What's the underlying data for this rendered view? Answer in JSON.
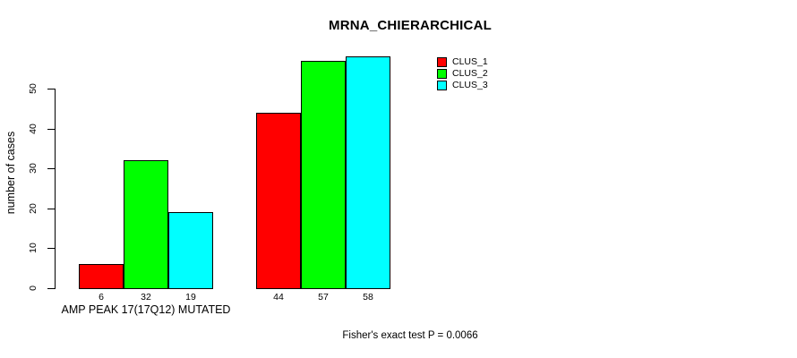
{
  "title": "MRNA_CHIERARCHICAL",
  "y_axis": {
    "label": "number of cases",
    "ticks": [
      0,
      10,
      20,
      30,
      40,
      50
    ]
  },
  "x_axis": {
    "group_labels": [
      "AMP PEAK 17(17Q12) MUTATED",
      ""
    ]
  },
  "footer": "Fisher's exact test P = 0.0066",
  "legend": {
    "entries": [
      {
        "label": "CLUS_1",
        "color": "#ff0000"
      },
      {
        "label": "CLUS_2",
        "color": "#00ff00"
      },
      {
        "label": "CLUS_3",
        "color": "#00ffff"
      }
    ]
  },
  "chart_data": {
    "type": "bar",
    "title": "MRNA_CHIERARCHICAL",
    "xlabel": "",
    "ylabel": "number of cases",
    "categories": [
      "AMP PEAK 17(17Q12) MUTATED",
      ""
    ],
    "series": [
      {
        "name": "CLUS_1",
        "color": "#ff0000",
        "values": [
          6,
          44
        ]
      },
      {
        "name": "CLUS_2",
        "color": "#00ff00",
        "values": [
          32,
          57
        ]
      },
      {
        "name": "CLUS_3",
        "color": "#00ffff",
        "values": [
          19,
          58
        ]
      }
    ],
    "yticks": [
      0,
      10,
      20,
      30,
      40,
      50
    ],
    "ylim": [
      0,
      58
    ],
    "grid": false,
    "legend_position": "top-right",
    "show_bar_values": true,
    "annotation": "Fisher's exact test P = 0.0066"
  }
}
